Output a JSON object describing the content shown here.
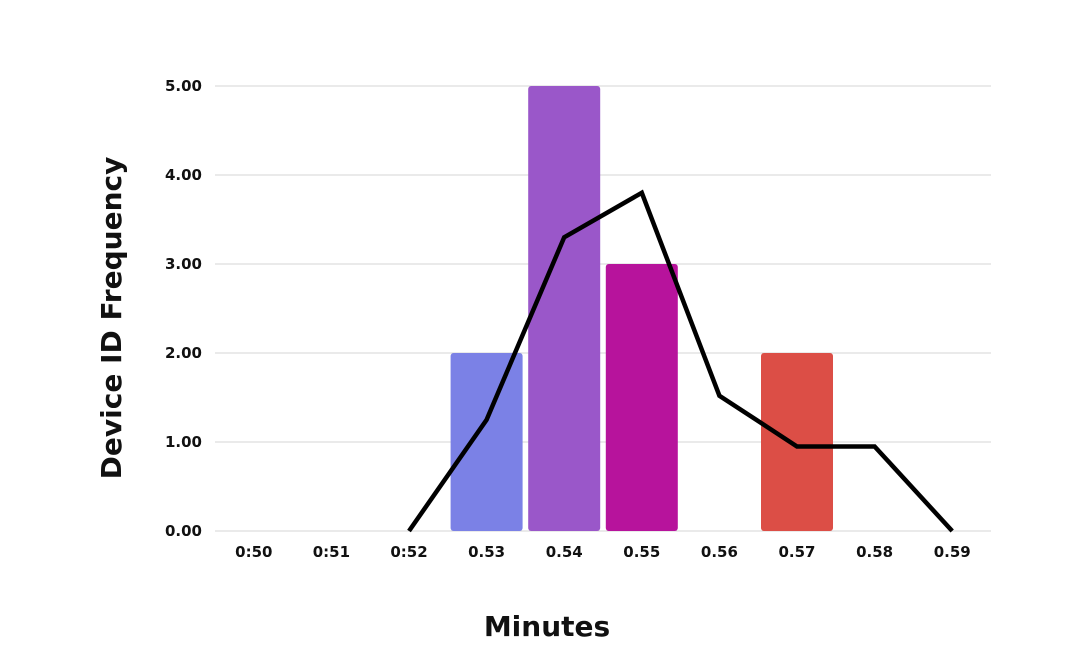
{
  "chart_data": {
    "type": "bar",
    "categories": [
      "0:50",
      "0:51",
      "0:52",
      "0.53",
      "0.54",
      "0.55",
      "0.56",
      "0.57",
      "0.58",
      "0.59"
    ],
    "series": [
      {
        "type": "bar",
        "values": [
          0,
          0,
          0,
          2,
          5,
          3,
          0,
          2,
          0,
          0
        ]
      },
      {
        "type": "line",
        "values": [
          null,
          null,
          0,
          1.25,
          3.3,
          3.8,
          1.52,
          0.95,
          0.95,
          0
        ]
      }
    ],
    "bar_colors": [
      "#7b81e6",
      "#7b81e6",
      "#7b81e6",
      "#7b81e6",
      "#9a57c9",
      "#b7139c",
      "#7b81e6",
      "#dc4e46",
      "#7b81e6",
      "#7b81e6"
    ],
    "line_color": "#000000",
    "xlabel": "Minutes",
    "ylabel": "Device ID Frequency",
    "ylim": [
      0,
      5
    ],
    "yticks": [
      "0.00",
      "1.00",
      "2.00",
      "3.00",
      "4.00",
      "5.00"
    ],
    "grid": true
  }
}
